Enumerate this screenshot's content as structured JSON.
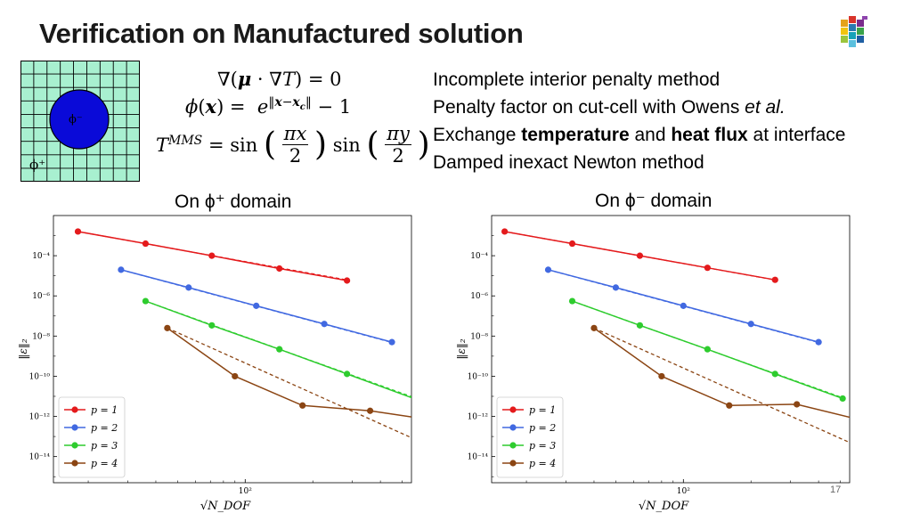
{
  "slide": {
    "title": "Verification on Manufactured solution",
    "page_number": "17",
    "domain_fig": {
      "inner_label": "ϕ⁻",
      "outer_label": "ϕ⁺",
      "inner_color": "#0a0ad8",
      "outer_color": "#a8f0d0"
    },
    "equations": [
      "∇(μ · ∇T) = 0",
      "ϕ(x) = e^{‖x−x_c‖} − 1",
      "T^{MMS} = sin(πx/2) sin(πy/2)"
    ],
    "bullets": [
      {
        "parts": [
          {
            "t": "Incomplete interior penalty method",
            "s": "n"
          }
        ]
      },
      {
        "parts": [
          {
            "t": "Penalty factor on cut-cell with Owens ",
            "s": "n"
          },
          {
            "t": "et al.",
            "s": "i"
          }
        ]
      },
      {
        "parts": [
          {
            "t": "Exchange ",
            "s": "n"
          },
          {
            "t": "temperature",
            "s": "b"
          },
          {
            "t": " and ",
            "s": "n"
          },
          {
            "t": "heat flux",
            "s": "b"
          },
          {
            "t": " at interface",
            "s": "n"
          }
        ]
      },
      {
        "parts": [
          {
            "t": "Damped inexact Newton method",
            "s": "n"
          }
        ]
      }
    ],
    "left_label": "On ϕ⁺ domain",
    "right_label": "On ϕ⁻ domain"
  },
  "chart_data": [
    {
      "type": "line",
      "title": "On ϕ⁺ domain",
      "xlabel": "√N_DOF",
      "ylabel": "‖ε‖₂",
      "xscale": "log",
      "yscale": "log",
      "xlim": [
        14,
        550
      ],
      "ylim": [
        5e-16,
        0.01
      ],
      "xticks": [
        {
          "value": 100,
          "label": "10²"
        }
      ],
      "yticks": [
        {
          "value": 0.0001,
          "label": "10⁻⁴"
        },
        {
          "value": 1e-06,
          "label": "10⁻⁶"
        },
        {
          "value": 1e-08,
          "label": "10⁻⁸"
        },
        {
          "value": 1e-10,
          "label": "10⁻¹⁰"
        },
        {
          "value": 1e-12,
          "label": "10⁻¹²"
        },
        {
          "value": 1e-14,
          "label": "10⁻¹⁴"
        }
      ],
      "grid": false,
      "legend": "bottom-left",
      "series": [
        {
          "name": "p = 1",
          "color": "#e41a1c",
          "x": [
            18,
            36,
            71,
            142,
            284
          ],
          "y": [
            0.0016,
            0.0004,
            0.0001,
            2.3e-05,
            5.8e-06
          ]
        },
        {
          "name": "p = 2",
          "color": "#4169e1",
          "x": [
            28,
            56,
            112,
            225,
            450
          ],
          "y": [
            2e-05,
            2.6e-06,
            3.2e-07,
            4e-08,
            5e-09
          ]
        },
        {
          "name": "p = 3",
          "color": "#2ecc2e",
          "x": [
            36,
            71,
            142,
            284,
            568
          ],
          "y": [
            5.5e-07,
            3.4e-08,
            2.2e-09,
            1.3e-10,
            7.5e-12
          ]
        },
        {
          "name": "p = 4",
          "color": "#8b4513",
          "x": [
            45,
            90,
            180,
            360,
            720
          ],
          "y": [
            2.5e-08,
            1e-10,
            3.5e-12,
            1.9e-12,
            6e-13
          ]
        }
      ],
      "reference_lines": [
        {
          "series": "p = 1",
          "style": "dashed",
          "x": [
            18,
            284
          ],
          "y": [
            0.0016,
            6.2e-06
          ]
        },
        {
          "series": "p = 2",
          "style": "dashed",
          "x": [
            28,
            450
          ],
          "y": [
            2e-05,
            4.8e-09
          ]
        },
        {
          "series": "p = 3",
          "style": "dashed",
          "x": [
            36,
            568
          ],
          "y": [
            5.5e-07,
            8.5e-12
          ]
        },
        {
          "series": "p = 4",
          "style": "dashed",
          "x": [
            45,
            780
          ],
          "y": [
            2.5e-08,
            1.5e-14
          ]
        }
      ]
    },
    {
      "type": "line",
      "title": "On ϕ⁻ domain",
      "xlabel": "√N_DOF",
      "ylabel": "‖ε‖₂",
      "xscale": "log",
      "yscale": "log",
      "xlim": [
        14,
        550
      ],
      "ylim": [
        5e-16,
        0.01
      ],
      "xticks": [
        {
          "value": 100,
          "label": "10²"
        }
      ],
      "yticks": [
        {
          "value": 0.0001,
          "label": "10⁻⁴"
        },
        {
          "value": 1e-06,
          "label": "10⁻⁶"
        },
        {
          "value": 1e-08,
          "label": "10⁻⁸"
        },
        {
          "value": 1e-10,
          "label": "10⁻¹⁰"
        },
        {
          "value": 1e-12,
          "label": "10⁻¹²"
        },
        {
          "value": 1e-14,
          "label": "10⁻¹⁴"
        }
      ],
      "grid": false,
      "legend": "bottom-left",
      "series": [
        {
          "name": "p = 1",
          "color": "#e41a1c",
          "x": [
            16,
            32,
            64,
            128,
            256
          ],
          "y": [
            0.0016,
            0.0004,
            0.0001,
            2.5e-05,
            6.3e-06
          ]
        },
        {
          "name": "p = 2",
          "color": "#4169e1",
          "x": [
            25,
            50,
            100,
            200,
            400
          ],
          "y": [
            2e-05,
            2.6e-06,
            3.2e-07,
            4e-08,
            5e-09
          ]
        },
        {
          "name": "p = 3",
          "color": "#2ecc2e",
          "x": [
            32,
            64,
            128,
            256,
            512
          ],
          "y": [
            5.5e-07,
            3.4e-08,
            2.2e-09,
            1.3e-10,
            7.8e-12
          ]
        },
        {
          "name": "p = 4",
          "color": "#8b4513",
          "x": [
            40,
            80,
            160,
            320,
            640
          ],
          "y": [
            2.5e-08,
            1e-10,
            3.5e-12,
            4e-12,
            6e-13
          ]
        }
      ],
      "reference_lines": [
        {
          "series": "p = 1",
          "style": "dashed",
          "x": [
            16,
            256
          ],
          "y": [
            0.0016,
            6.2e-06
          ]
        },
        {
          "series": "p = 2",
          "style": "dashed",
          "x": [
            25,
            400
          ],
          "y": [
            2e-05,
            4.8e-09
          ]
        },
        {
          "series": "p = 3",
          "style": "dashed",
          "x": [
            32,
            512
          ],
          "y": [
            5.5e-07,
            8.5e-12
          ]
        },
        {
          "series": "p = 4",
          "style": "dashed",
          "x": [
            40,
            700
          ],
          "y": [
            2.5e-08,
            1.5e-14
          ]
        }
      ]
    }
  ]
}
